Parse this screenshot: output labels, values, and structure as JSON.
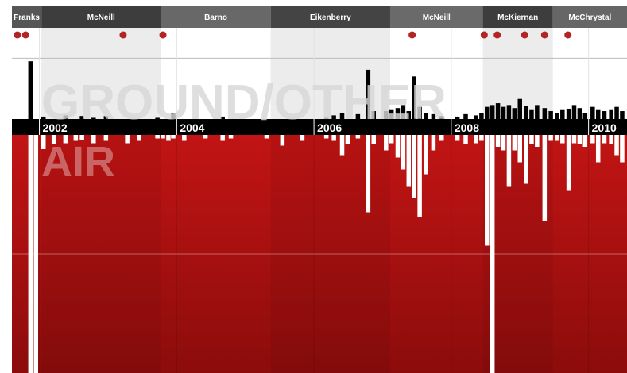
{
  "chart_data": {
    "type": "bar",
    "xlim": [
      2001.6,
      2010.56
    ],
    "xticks": [
      2002,
      2004,
      2006,
      2008,
      2010
    ],
    "ylim": [
      0,
      150
    ],
    "yticks": [
      100
    ],
    "y2lim": [
      0,
      200
    ],
    "y2ticks": [
      100
    ],
    "grid": true,
    "commanders": [
      {
        "name": "Franks",
        "start": 2001.6,
        "end": 2002.03,
        "color": "#565656"
      },
      {
        "name": "McNeill",
        "start": 2002.03,
        "end": 2003.77,
        "color": "#3d3d3d"
      },
      {
        "name": "Barno",
        "start": 2003.77,
        "end": 2005.37,
        "color": "#686868"
      },
      {
        "name": "Eikenberry",
        "start": 2005.37,
        "end": 2007.11,
        "color": "#444444"
      },
      {
        "name": "McNeill",
        "start": 2007.11,
        "end": 2008.46,
        "color": "#6a6a6a"
      },
      {
        "name": "McKiernan",
        "start": 2008.46,
        "end": 2009.48,
        "color": "#3d3d3d"
      },
      {
        "name": "McChrystal",
        "start": 2009.48,
        "end": 2010.56,
        "color": "#666666"
      }
    ],
    "events": [
      2001.68,
      2001.8,
      2003.22,
      2003.8,
      2007.43,
      2008.48,
      2008.67,
      2009.07,
      2009.36,
      2009.7
    ],
    "event_color": "#b32424",
    "x": [
      2001.87,
      2001.95,
      2002.06,
      2002.21,
      2002.38,
      2002.53,
      2002.62,
      2002.79,
      2002.97,
      2003.28,
      2003.45,
      2003.72,
      2003.8,
      2003.88,
      2003.95,
      2004.11,
      2004.42,
      2004.67,
      2004.79,
      2005.31,
      2005.54,
      2005.83,
      2006.18,
      2006.29,
      2006.41,
      2006.49,
      2006.64,
      2006.79,
      2006.87,
      2007.05,
      2007.13,
      2007.22,
      2007.3,
      2007.38,
      2007.46,
      2007.54,
      2007.63,
      2007.74,
      2007.86,
      2008.09,
      2008.21,
      2008.36,
      2008.44,
      2008.52,
      2008.6,
      2008.68,
      2008.76,
      2008.84,
      2008.92,
      2009.0,
      2009.09,
      2009.17,
      2009.25,
      2009.36,
      2009.45,
      2009.54,
      2009.62,
      2009.71,
      2009.79,
      2009.87,
      2009.95,
      2010.06,
      2010.14,
      2010.23,
      2010.33,
      2010.41,
      2010.49
    ],
    "series": [
      {
        "name": "GROUND/OTHER",
        "color": "#000000",
        "values": [
          95,
          0,
          4,
          0,
          6,
          0,
          5,
          2,
          5,
          0,
          0,
          2,
          0,
          0,
          9,
          0,
          0,
          4,
          0,
          0,
          0,
          0,
          2,
          6,
          10,
          0,
          8,
          81,
          13,
          13,
          16,
          18,
          23,
          13,
          70,
          20,
          10,
          8,
          5,
          4,
          8,
          6,
          10,
          20,
          23,
          26,
          20,
          23,
          18,
          33,
          22,
          16,
          23,
          18,
          13,
          10,
          16,
          17,
          23,
          18,
          10,
          20,
          16,
          13,
          16,
          20,
          13
        ]
      },
      {
        "name": "AIR",
        "color": "#ffffff",
        "axis": "y2",
        "values": [
          200,
          200,
          12,
          8,
          7,
          5,
          4,
          7,
          5,
          7,
          5,
          3,
          3,
          5,
          3,
          5,
          3,
          5,
          3,
          3,
          9,
          5,
          3,
          5,
          17,
          8,
          3,
          65,
          8,
          13,
          7,
          19,
          29,
          43,
          53,
          69,
          33,
          13,
          5,
          5,
          8,
          7,
          5,
          93,
          200,
          10,
          13,
          43,
          13,
          23,
          41,
          8,
          10,
          72,
          5,
          5,
          7,
          47,
          7,
          8,
          10,
          7,
          23,
          7,
          8,
          17,
          23
        ]
      }
    ]
  }
}
